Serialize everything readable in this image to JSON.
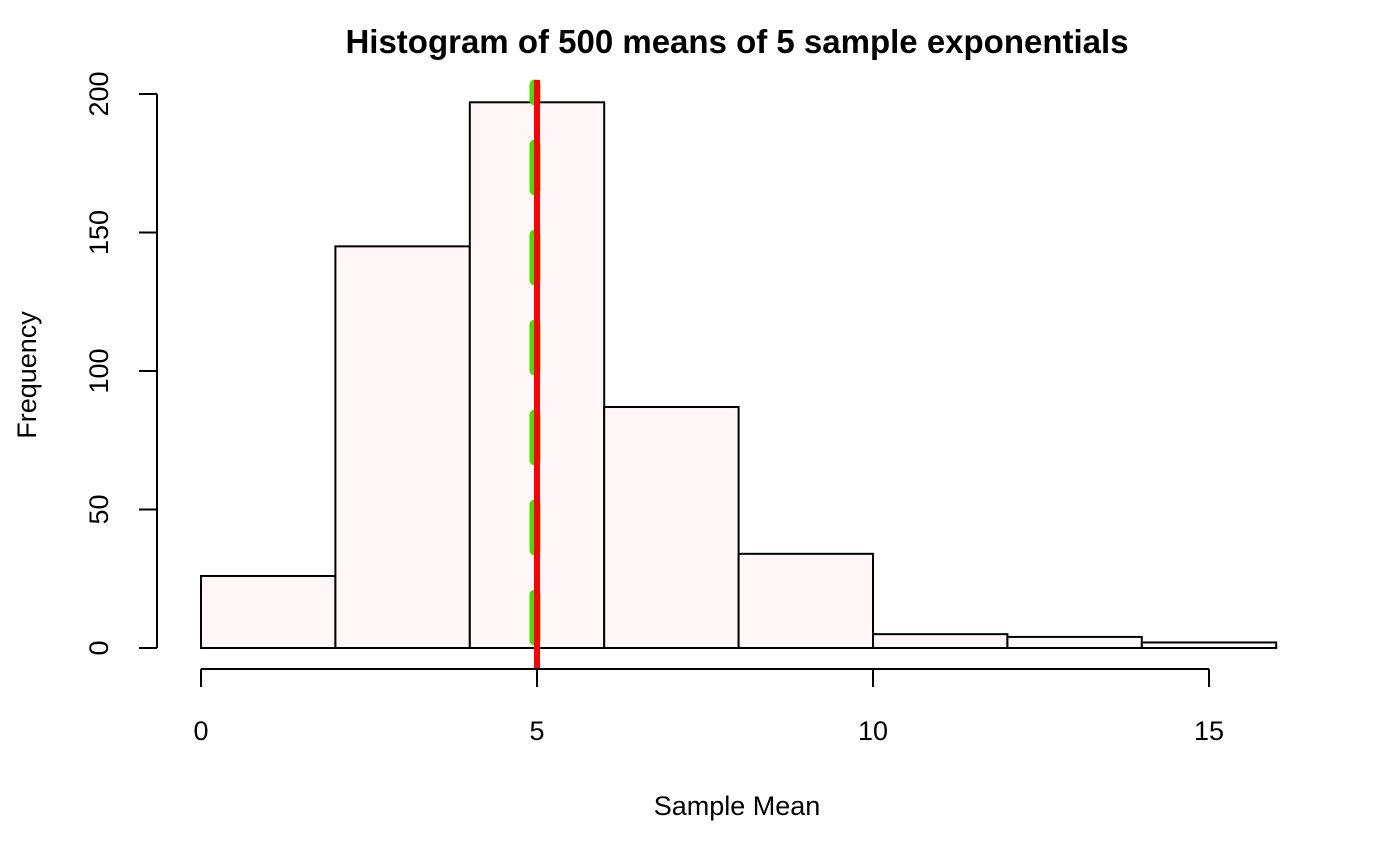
{
  "chart_data": {
    "type": "bar",
    "subtype": "histogram",
    "title": "Histogram of 500 means of 5 sample exponentials",
    "xlabel": "Sample Mean",
    "ylabel": "Frequency",
    "bins": [
      {
        "from": 0,
        "to": 2,
        "count": 26
      },
      {
        "from": 2,
        "to": 4,
        "count": 145
      },
      {
        "from": 4,
        "to": 6,
        "count": 197
      },
      {
        "from": 6,
        "to": 8,
        "count": 87
      },
      {
        "from": 8,
        "to": 10,
        "count": 34
      },
      {
        "from": 10,
        "to": 12,
        "count": 5
      },
      {
        "from": 12,
        "to": 14,
        "count": 4
      },
      {
        "from": 14,
        "to": 16,
        "count": 2
      }
    ],
    "xlim": [
      0,
      16
    ],
    "ylim": [
      0,
      200
    ],
    "x_ticks": [
      0,
      5,
      10,
      15
    ],
    "x_tick_labels": [
      "0",
      "5",
      "10",
      "15"
    ],
    "y_ticks": [
      0,
      50,
      100,
      150,
      200
    ],
    "y_tick_labels": [
      "0",
      "50",
      "100",
      "150",
      "200"
    ],
    "vertical_lines": [
      {
        "name": "sample-mean-line",
        "x": 4.97,
        "color": "#44dd00",
        "style": "dashed"
      },
      {
        "name": "theoretical-mean-line",
        "x": 5.0,
        "color": "#ff0000",
        "style": "solid"
      }
    ],
    "bar_fill": "#fff7f7",
    "bar_stroke": "#000000",
    "grid": false,
    "legend": "none"
  }
}
